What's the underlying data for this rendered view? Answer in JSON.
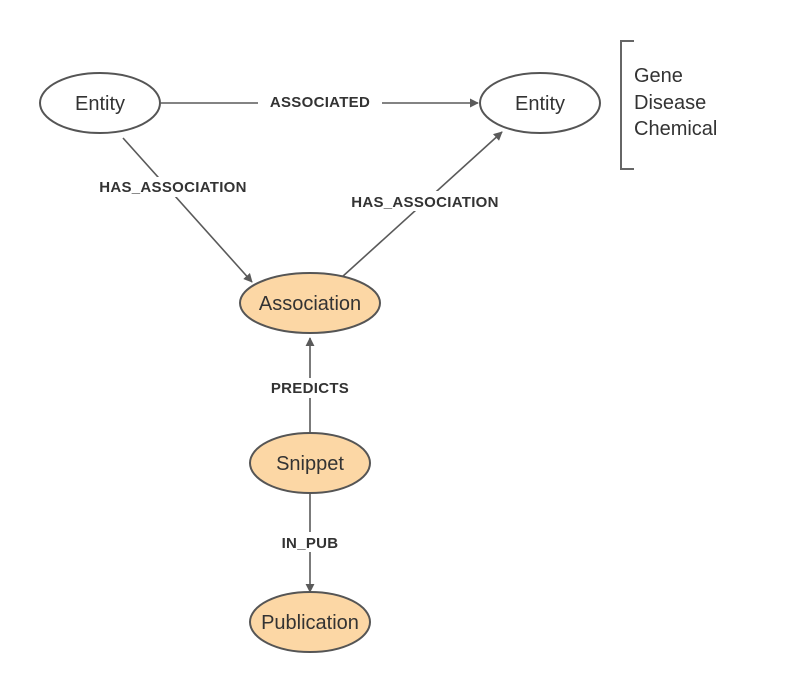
{
  "diagram": {
    "nodes": {
      "entity_left": {
        "label": "Entity",
        "fill": "#ffffff"
      },
      "entity_right": {
        "label": "Entity",
        "fill": "#ffffff"
      },
      "association": {
        "label": "Association",
        "fill": "#fcd7a5"
      },
      "snippet": {
        "label": "Snippet",
        "fill": "#fcd7a5"
      },
      "publication": {
        "label": "Publication",
        "fill": "#fcd7a5"
      }
    },
    "edges": {
      "associated": "ASSOCIATED",
      "has_association_left": "HAS_ASSOCIATION",
      "has_association_right": "HAS_ASSOCIATION",
      "predicts": "PREDICTS",
      "in_pub": "IN_PUB"
    },
    "entity_types": [
      "Gene",
      "Disease",
      "Chemical"
    ],
    "colors": {
      "stroke": "#555555",
      "edge": "#5a5a5a",
      "highlight_fill": "#fcd7a5"
    }
  }
}
